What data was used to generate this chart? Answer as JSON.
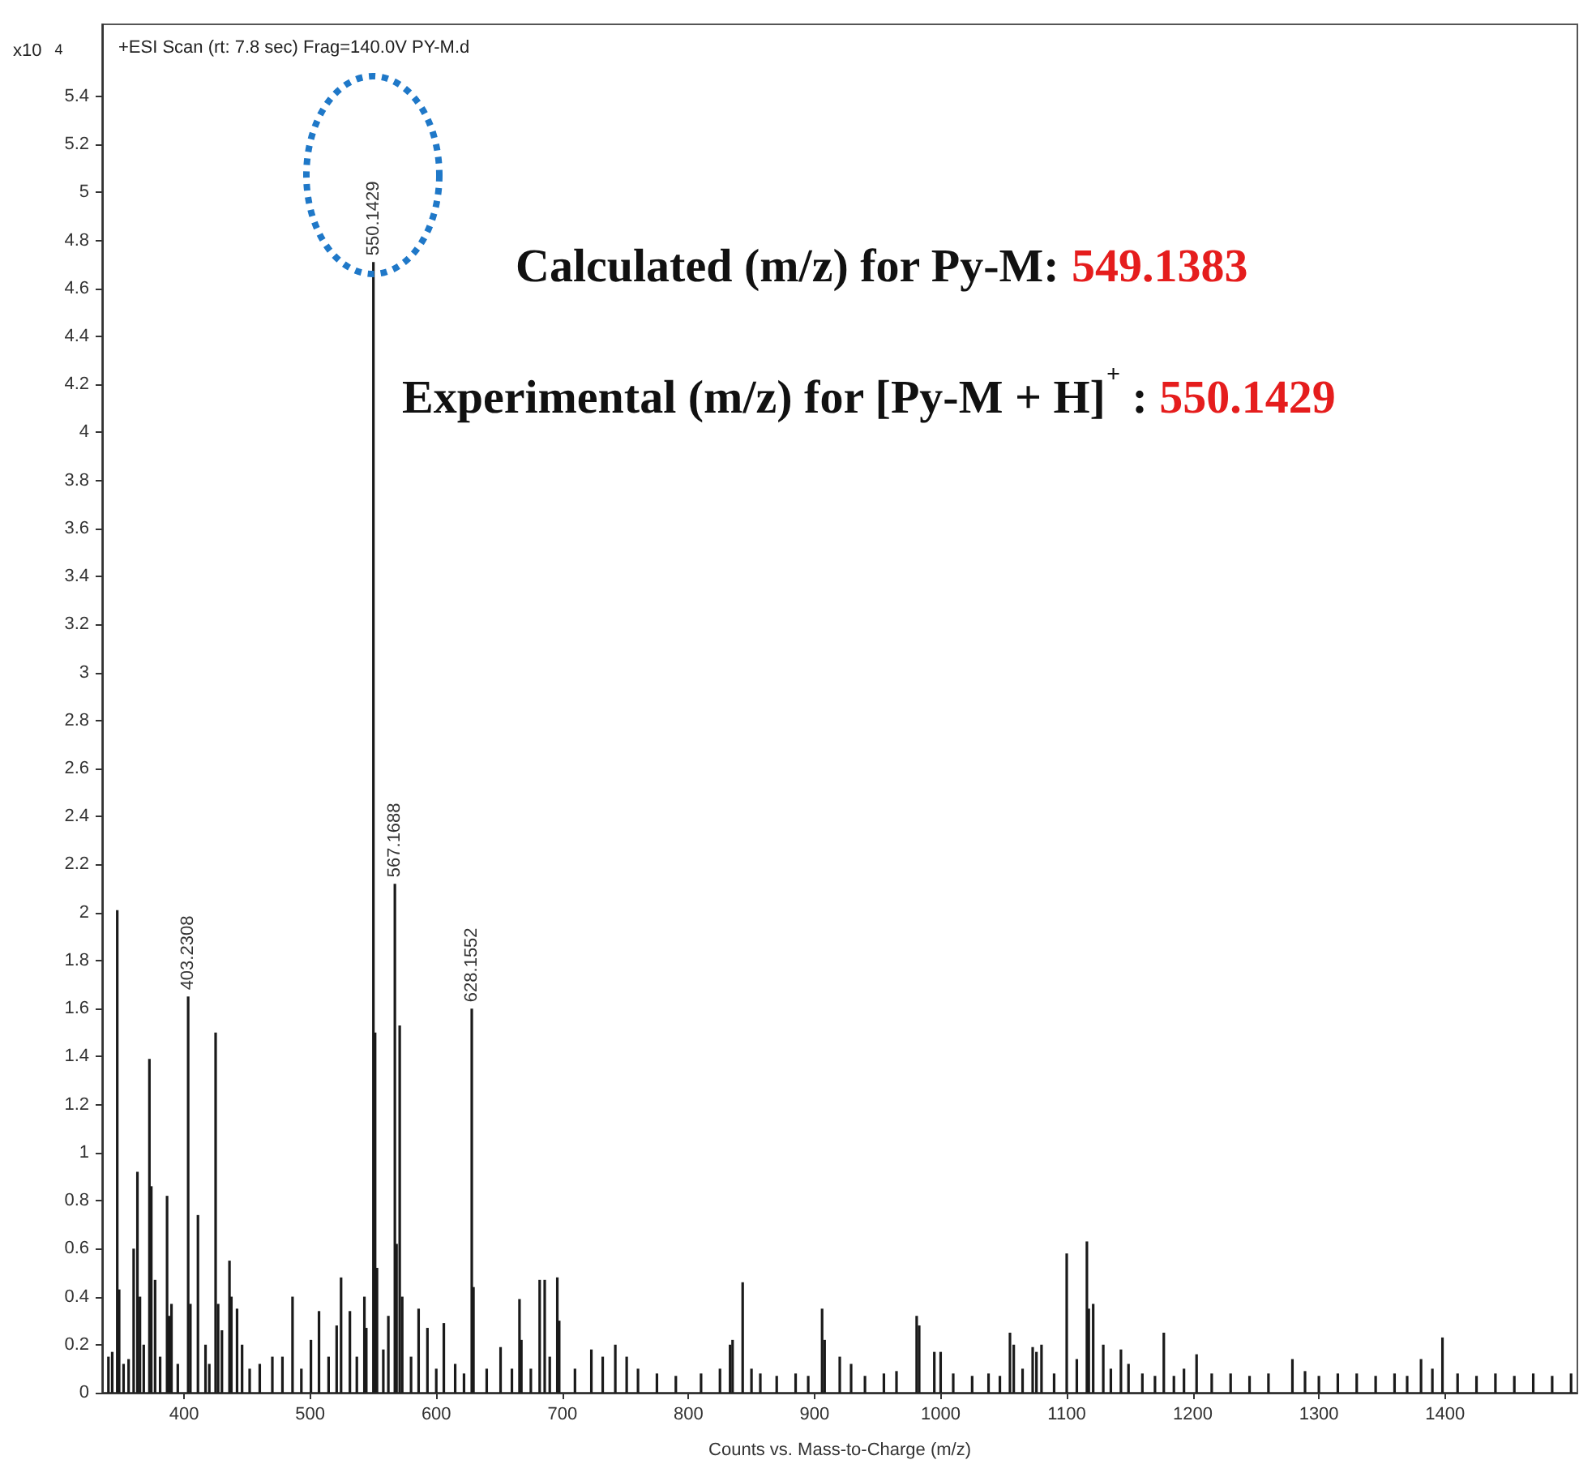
{
  "chart_data": {
    "type": "bar",
    "title": "+ESI Scan (rt: 7.8 sec) Frag=140.0V PY-M.d",
    "xlabel": "Counts vs. Mass-to-Charge (m/z)",
    "ylabel": "x10$^{4}$",
    "annotations": [
      "Calculated (m/z) for Py-M: 549.1383",
      "Experimental (m/z) for [Py-M + H]$^{+}$ : 550.1429",
      {
        "text": "403.2308",
        "x": 403.2308,
        "y": 1.65
      },
      {
        "text": "550.1429",
        "x": 550.1429,
        "y": 4.71
      },
      {
        "text": "567.1688",
        "x": 567.1688,
        "y": 2.12
      },
      {
        "text": "628.1552",
        "x": 628.1552,
        "y": 1.6
      }
    ],
    "color": "#1a1a1a",
    "x": [
      340,
      343,
      347,
      348.5,
      352,
      356,
      360,
      363,
      365,
      368,
      372.5,
      374,
      377,
      381,
      386.5,
      388,
      390,
      395,
      403.2308,
      405,
      411,
      417,
      420,
      425,
      427,
      430,
      436,
      437.5,
      442,
      446,
      452,
      460,
      470,
      478,
      486,
      493,
      500.6,
      507,
      514.6,
      521,
      524.5,
      531.5,
      537,
      543,
      544.5,
      550.1429,
      551.5,
      553,
      558,
      562,
      567.1688,
      568.5,
      571,
      573,
      580,
      586,
      593,
      600,
      606,
      615,
      622,
      628.1552,
      629.5,
      640,
      651,
      660,
      666,
      667.5,
      675,
      682,
      686,
      690,
      696,
      697.5,
      710,
      723,
      732,
      742,
      751,
      760,
      775,
      790,
      810,
      825,
      833,
      835,
      843,
      850,
      857,
      870,
      885,
      895,
      906,
      908,
      920,
      929,
      940,
      955,
      965,
      981,
      983,
      995,
      1000,
      1010,
      1025,
      1038,
      1047,
      1055,
      1058,
      1065,
      1073,
      1076,
      1080,
      1090,
      1100,
      1108,
      1116,
      1117.5,
      1121,
      1129,
      1135,
      1143,
      1149,
      1160,
      1170,
      1177,
      1185,
      1193,
      1203,
      1215,
      1230,
      1245,
      1260,
      1279,
      1289,
      1300,
      1315,
      1330,
      1345,
      1360,
      1370,
      1381,
      1390,
      1398,
      1410,
      1425,
      1440,
      1455,
      1470,
      1485,
      1500
    ],
    "values": [
      0.15,
      0.17,
      2.01,
      0.43,
      0.12,
      0.14,
      0.6,
      0.92,
      0.4,
      0.2,
      1.39,
      0.86,
      0.47,
      0.15,
      0.82,
      0.32,
      0.37,
      0.12,
      1.65,
      0.37,
      0.74,
      0.2,
      0.12,
      1.5,
      0.37,
      0.26,
      0.55,
      0.4,
      0.35,
      0.2,
      0.1,
      0.12,
      0.15,
      0.15,
      0.4,
      0.1,
      0.22,
      0.34,
      0.15,
      0.28,
      0.48,
      0.34,
      0.15,
      0.4,
      0.27,
      4.71,
      1.5,
      0.52,
      0.18,
      0.32,
      2.12,
      0.62,
      1.53,
      0.4,
      0.15,
      0.35,
      0.27,
      0.1,
      0.29,
      0.12,
      0.08,
      1.6,
      0.44,
      0.1,
      0.19,
      0.1,
      0.39,
      0.22,
      0.1,
      0.47,
      0.47,
      0.15,
      0.48,
      0.3,
      0.1,
      0.18,
      0.15,
      0.2,
      0.15,
      0.1,
      0.08,
      0.07,
      0.08,
      0.1,
      0.2,
      0.22,
      0.46,
      0.1,
      0.08,
      0.07,
      0.08,
      0.07,
      0.35,
      0.22,
      0.15,
      0.12,
      0.07,
      0.08,
      0.09,
      0.32,
      0.28,
      0.17,
      0.17,
      0.08,
      0.07,
      0.08,
      0.07,
      0.25,
      0.2,
      0.1,
      0.19,
      0.17,
      0.2,
      0.08,
      0.58,
      0.14,
      0.63,
      0.35,
      0.37,
      0.2,
      0.1,
      0.18,
      0.12,
      0.08,
      0.07,
      0.25,
      0.07,
      0.1,
      0.16,
      0.08,
      0.08,
      0.07,
      0.08,
      0.14,
      0.09,
      0.07,
      0.08,
      0.08,
      0.07,
      0.08,
      0.07,
      0.14,
      0.1,
      0.23,
      0.08,
      0.07,
      0.08,
      0.07,
      0.08,
      0.07,
      0.08
    ],
    "xlim": [
      335,
      1505
    ],
    "xticks": [
      400,
      500,
      600,
      700,
      800,
      900,
      1000,
      1100,
      1200,
      1300,
      1400
    ],
    "ylim": [
      0,
      5.7
    ],
    "yticks": [
      0,
      0.2,
      0.4,
      0.6,
      0.8,
      1,
      1.2,
      1.4,
      1.6,
      1.8,
      2,
      2.2,
      2.4,
      2.6,
      2.8,
      3,
      3.2,
      3.4,
      3.6,
      3.8,
      4,
      4.2,
      4.4,
      4.6,
      4.8,
      5,
      5.2,
      5.4
    ]
  }
}
